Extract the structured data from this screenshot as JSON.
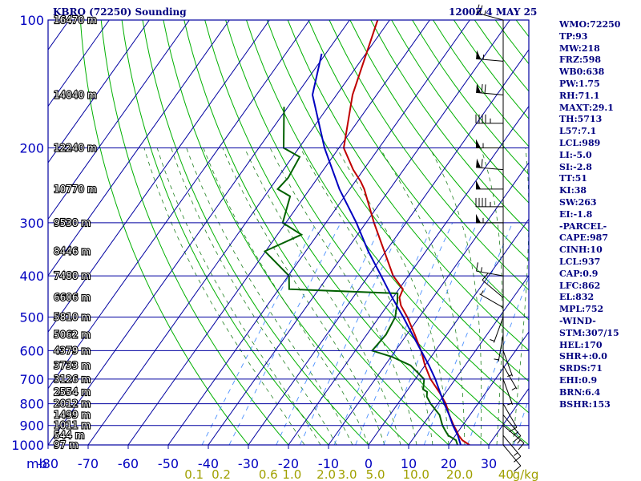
{
  "header": {
    "title": "KBRO (72250) Sounding",
    "valid_time": "1200Z  4 MAY 25"
  },
  "stats": [
    "WMO:72250",
    "TP:93",
    "MW:218",
    "FRZ:598",
    "WB0:638",
    "PW:1.75",
    "RH:71.1",
    "MAXT:29.1",
    "TH:5713",
    "L57:7.1",
    "LCL:989",
    "LI:-5.0",
    "SI:-2.8",
    "TT:51",
    "KI:38",
    "SW:263",
    "EI:-1.8",
    "-PARCEL-",
    "CAPE:987",
    "CINH:10",
    "LCL:937",
    "CAP:0.9",
    "LFC:862",
    "EL:832",
    "MPL:752",
    "-WIND-",
    "STM:307/15",
    "HEL:170",
    "SHR+:0.0",
    "SRDS:71",
    "EHI:0.9",
    "BRN:6.4",
    "BSHR:153"
  ],
  "colors": {
    "grid": "#0000a0",
    "dry_adiabat": "#00b000",
    "moist_adiabat": "#208020",
    "mixing_ratio": "#4a90ff",
    "temperature": "#c00000",
    "dewpoint": "#006000",
    "parcel": "#0000c0",
    "label": "#0000c0",
    "height_label": "#ffffff",
    "mixing_label": "#a0a000",
    "text": "#000080"
  },
  "chart_data": {
    "type": "line",
    "title": "KBRO (72250) Sounding",
    "xlabel": "",
    "ylabel": "mb",
    "xlim": [
      -80,
      40
    ],
    "ylim": [
      1000,
      100
    ],
    "log_y": true,
    "x_tick_labels": [
      "-80",
      "-70",
      "-60",
      "-50",
      "-40",
      "-30",
      "-20",
      "-10",
      "0",
      "10",
      "20",
      "30",
      "40"
    ],
    "x_ticks": [
      -80,
      -70,
      -60,
      -50,
      -40,
      -30,
      -20,
      -10,
      0,
      10,
      20,
      30,
      40
    ],
    "y_ticks": [
      100,
      200,
      300,
      400,
      500,
      600,
      700,
      800,
      900,
      1000
    ],
    "y_tick_labels": [
      "100",
      "200",
      "300",
      "400",
      "500",
      "600",
      "700",
      "800",
      "900",
      "1000"
    ],
    "height_labels": [
      {
        "p": 100,
        "text": "16470 m"
      },
      {
        "p": 150,
        "text": "14040 m"
      },
      {
        "p": 200,
        "text": "12240 m"
      },
      {
        "p": 250,
        "text": "10770 m"
      },
      {
        "p": 300,
        "text": "9530 m"
      },
      {
        "p": 350,
        "text": "8446 m"
      },
      {
        "p": 400,
        "text": "7480 m"
      },
      {
        "p": 450,
        "text": "6606 m"
      },
      {
        "p": 500,
        "text": "5810 m"
      },
      {
        "p": 550,
        "text": "5062 m"
      },
      {
        "p": 600,
        "text": "4379 m"
      },
      {
        "p": 650,
        "text": "3733 m"
      },
      {
        "p": 700,
        "text": "3126 m"
      },
      {
        "p": 750,
        "text": "2554 m"
      },
      {
        "p": 800,
        "text": "2012 m"
      },
      {
        "p": 850,
        "text": "1499 m"
      },
      {
        "p": 900,
        "text": "1011 m"
      },
      {
        "p": 950,
        "text": "544 m"
      },
      {
        "p": 1000,
        "text": "97 m"
      }
    ],
    "mixing_ratio_labels": [
      {
        "w": 0.1,
        "text": "0.1"
      },
      {
        "w": 0.2,
        "text": "0.2"
      },
      {
        "w": 0.6,
        "text": "0.6"
      },
      {
        "w": 1.0,
        "text": "1.0"
      },
      {
        "w": 2.0,
        "text": "2.0"
      },
      {
        "w": 3.0,
        "text": "3.0"
      },
      {
        "w": 5.0,
        "text": "5.0"
      },
      {
        "w": 10.0,
        "text": "10.0"
      },
      {
        "w": 20.0,
        "text": "20.0"
      },
      {
        "w": 40.0,
        "text": "40"
      }
    ],
    "mixing_ratio_unit": "g/kg",
    "series": [
      {
        "key": "temperature",
        "points": [
          [
            1000,
            25.2
          ],
          [
            975,
            22.6
          ],
          [
            950,
            20.8
          ],
          [
            925,
            19.4
          ],
          [
            900,
            17.8
          ],
          [
            850,
            14.8
          ],
          [
            800,
            12.0
          ],
          [
            750,
            8.2
          ],
          [
            700,
            3.8
          ],
          [
            650,
            0.0
          ],
          [
            600,
            -3.6
          ],
          [
            550,
            -8.0
          ],
          [
            500,
            -13.0
          ],
          [
            470,
            -16.6
          ],
          [
            450,
            -18.4
          ],
          [
            430,
            -19.0
          ],
          [
            400,
            -23.8
          ],
          [
            350,
            -30.4
          ],
          [
            300,
            -38.0
          ],
          [
            250,
            -46.4
          ],
          [
            240,
            -48.6
          ],
          [
            225,
            -52.6
          ],
          [
            200,
            -58.8
          ],
          [
            150,
            -66.0
          ],
          [
            100,
            -73.0
          ]
        ]
      },
      {
        "key": "dewpoint",
        "points": [
          [
            1000,
            22.2
          ],
          [
            975,
            21.0
          ],
          [
            950,
            18.2
          ],
          [
            925,
            16.6
          ],
          [
            900,
            15.0
          ],
          [
            850,
            12.4
          ],
          [
            800,
            8.2
          ],
          [
            770,
            6.0
          ],
          [
            750,
            5.2
          ],
          [
            740,
            3.8
          ],
          [
            700,
            2.2
          ],
          [
            650,
            -3.6
          ],
          [
            620,
            -9.8
          ],
          [
            600,
            -15.8
          ],
          [
            550,
            -15.2
          ],
          [
            500,
            -16.0
          ],
          [
            460,
            -18.2
          ],
          [
            440,
            -19.6
          ],
          [
            430,
            -47.4
          ],
          [
            400,
            -49.8
          ],
          [
            350,
            -60.2
          ],
          [
            320,
            -54.0
          ],
          [
            300,
            -60.8
          ],
          [
            260,
            -63.6
          ],
          [
            250,
            -68.0
          ],
          [
            235,
            -67.4
          ],
          [
            210,
            -68.2
          ],
          [
            200,
            -73.8
          ],
          [
            160,
            -81.0
          ]
        ]
      },
      {
        "key": "parcel",
        "points": [
          [
            1000,
            23.0
          ],
          [
            950,
            20.6
          ],
          [
            900,
            17.6
          ],
          [
            850,
            14.8
          ],
          [
            800,
            11.6
          ],
          [
            750,
            8.4
          ],
          [
            700,
            5.0
          ],
          [
            650,
            1.0
          ],
          [
            600,
            -3.6
          ],
          [
            550,
            -8.6
          ],
          [
            500,
            -14.0
          ],
          [
            450,
            -20.2
          ],
          [
            400,
            -26.8
          ],
          [
            350,
            -34.4
          ],
          [
            300,
            -42.4
          ],
          [
            250,
            -52.6
          ],
          [
            200,
            -63.6
          ],
          [
            150,
            -76.0
          ],
          [
            120,
            -81.0
          ]
        ]
      }
    ],
    "winds": [
      {
        "p": 100,
        "dir": 285,
        "spd": 25
      },
      {
        "p": 125,
        "dir": 275,
        "spd": 55
      },
      {
        "p": 150,
        "dir": 275,
        "spd": 70
      },
      {
        "p": 175,
        "dir": 270,
        "spd": 45
      },
      {
        "p": 200,
        "dir": 270,
        "spd": 55
      },
      {
        "p": 225,
        "dir": 275,
        "spd": 60
      },
      {
        "p": 250,
        "dir": 270,
        "spd": 50
      },
      {
        "p": 275,
        "dir": 270,
        "spd": 45
      },
      {
        "p": 300,
        "dir": 270,
        "spd": 55
      },
      {
        "p": 400,
        "dir": 280,
        "spd": 15
      },
      {
        "p": 450,
        "dir": 310,
        "spd": 10
      },
      {
        "p": 475,
        "dir": 300,
        "spd": 5
      },
      {
        "p": 500,
        "dir": 200,
        "spd": 5
      },
      {
        "p": 550,
        "dir": 190,
        "spd": 5
      },
      {
        "p": 600,
        "dir": 160,
        "spd": 5
      },
      {
        "p": 650,
        "dir": 150,
        "spd": 5
      },
      {
        "p": 700,
        "dir": 160,
        "spd": 5
      },
      {
        "p": 800,
        "dir": 150,
        "spd": 10
      },
      {
        "p": 850,
        "dir": 140,
        "spd": 15
      },
      {
        "p": 900,
        "dir": 130,
        "spd": 15
      },
      {
        "p": 950,
        "dir": 140,
        "spd": 15
      },
      {
        "p": 1000,
        "dir": 140,
        "spd": 10
      }
    ]
  }
}
